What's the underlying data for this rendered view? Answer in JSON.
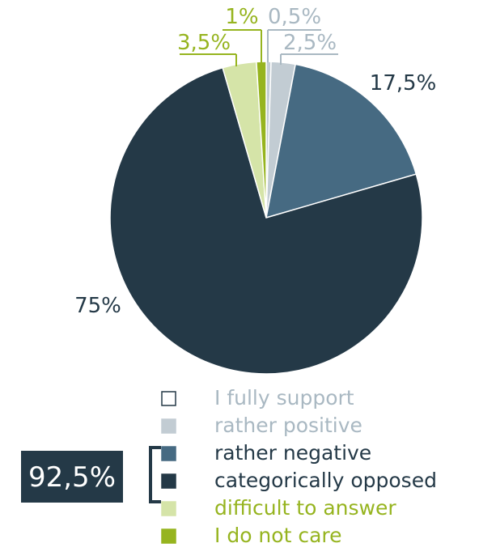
{
  "chart_data": {
    "type": "pie",
    "slices": [
      {
        "label": "I fully support",
        "value": 0.5,
        "value_label": "0,5%",
        "color": "#c2ccd3",
        "text_color": "#a9b8c2"
      },
      {
        "label": "rather positive",
        "value": 2.5,
        "value_label": "2,5%",
        "color": "#c2ccd3",
        "text_color": "#a9b8c2"
      },
      {
        "label": "rather negative",
        "value": 17.5,
        "value_label": "17,5%",
        "color": "#466a82",
        "text_color": "#243947"
      },
      {
        "label": "categorically opposed",
        "value": 75,
        "value_label": "75%",
        "color": "#243947",
        "text_color": "#243947"
      },
      {
        "label": "difficult to answer",
        "value": 3.5,
        "value_label": "3,5%",
        "color": "#d5e4a8",
        "text_color": "#96b41f"
      },
      {
        "label": "I do not care",
        "value": 1,
        "value_label": "1%",
        "color": "#96b41f",
        "text_color": "#96b41f"
      }
    ],
    "legend": [
      {
        "label": "I fully support",
        "swatch_fill": "#ffffff",
        "swatch_stroke": "#243947",
        "text_color": "#a9b8c2"
      },
      {
        "label": "rather positive",
        "swatch_fill": "#c2ccd3",
        "swatch_stroke": "#c2ccd3",
        "text_color": "#a9b8c2"
      },
      {
        "label": "rather negative",
        "swatch_fill": "#466a82",
        "swatch_stroke": "#466a82",
        "text_color": "#243947"
      },
      {
        "label": "categorically opposed",
        "swatch_fill": "#243947",
        "swatch_stroke": "#243947",
        "text_color": "#243947"
      },
      {
        "label": "difficult to answer",
        "swatch_fill": "#d5e4a8",
        "swatch_stroke": "#d5e4a8",
        "text_color": "#96b41f"
      },
      {
        "label": "I do not care",
        "swatch_fill": "#96b41f",
        "swatch_stroke": "#96b41f",
        "text_color": "#96b41f"
      }
    ],
    "bracket": {
      "label": "92,5%",
      "color": "#243947"
    }
  }
}
